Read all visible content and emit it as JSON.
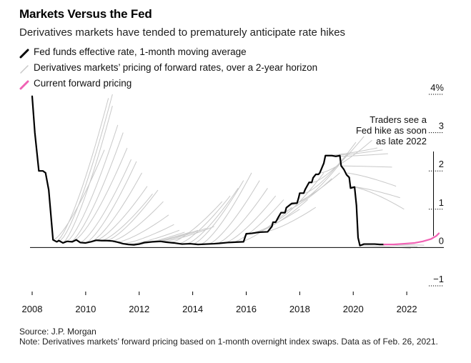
{
  "header": {
    "title": "Markets Versus the Fed",
    "subtitle": "Derivatives markets have tended to prematurely anticipate rate hikes"
  },
  "legend": [
    {
      "label": "Fed funds effective rate, 1-month moving average",
      "color": "#000000"
    },
    {
      "label": "Derivatives markets’ pricing of forward rates, over a 2-year horizon",
      "color": "#c8c8c8"
    },
    {
      "label": "Current forward pricing",
      "color": "#f062b4"
    }
  ],
  "annotation": {
    "lines": [
      "Traders see a",
      "Fed hike as soon",
      "as late 2022"
    ]
  },
  "footer": {
    "source": "Source: J.P. Morgan",
    "note": "Note: Derivatives markets’ forward pricing based on 1-month overnight index swaps. Data as of Feb. 26, 2021."
  },
  "chart_data": {
    "type": "line",
    "title": "Markets Versus the Fed",
    "xlabel": "",
    "ylabel": "",
    "xlim": [
      2008,
      2023.6
    ],
    "ylim": [
      -1,
      4
    ],
    "x_ticks": [
      2008,
      2010,
      2012,
      2014,
      2016,
      2018,
      2020,
      2022
    ],
    "x_tick_labels": [
      "2008",
      "2010",
      "2012",
      "2014",
      "2016",
      "2018",
      "2020",
      "2022"
    ],
    "y_ticks": [
      4,
      3,
      2,
      1,
      0,
      -1
    ],
    "y_tick_labels": [
      "4%",
      "3",
      "2",
      "1",
      "0",
      "−1"
    ],
    "series": [
      {
        "name": "Fed funds effective rate, 1-month moving average",
        "color": "#000000",
        "x": [
          2008.0,
          2008.1,
          2008.25,
          2008.4,
          2008.5,
          2008.62,
          2008.78,
          2008.92,
          2009.0,
          2009.15,
          2009.3,
          2009.5,
          2009.65,
          2009.8,
          2010.0,
          2010.2,
          2010.4,
          2010.6,
          2010.8,
          2011.0,
          2011.2,
          2011.4,
          2011.6,
          2011.8,
          2012.0,
          2012.2,
          2012.5,
          2012.8,
          2013.0,
          2013.3,
          2013.6,
          2013.9,
          2014.2,
          2014.5,
          2014.8,
          2015.0,
          2015.3,
          2015.6,
          2015.9,
          2016.0,
          2016.2,
          2016.5,
          2016.8,
          2016.96,
          2017.0,
          2017.1,
          2017.2,
          2017.3,
          2017.45,
          2017.5,
          2017.7,
          2017.9,
          2017.96,
          2018.0,
          2018.15,
          2018.2,
          2018.35,
          2018.45,
          2018.5,
          2018.6,
          2018.7,
          2018.75,
          2018.9,
          2018.96,
          2019.0,
          2019.2,
          2019.35,
          2019.5,
          2019.55,
          2019.65,
          2019.75,
          2019.85,
          2019.9,
          2020.05,
          2020.12,
          2020.18,
          2020.25,
          2020.4,
          2020.6,
          2020.8,
          2021.0,
          2021.15
        ],
        "values": [
          3.95,
          3.0,
          2.0,
          2.0,
          1.95,
          1.5,
          0.2,
          0.15,
          0.18,
          0.12,
          0.16,
          0.15,
          0.2,
          0.13,
          0.12,
          0.15,
          0.19,
          0.18,
          0.18,
          0.17,
          0.14,
          0.1,
          0.08,
          0.07,
          0.09,
          0.13,
          0.15,
          0.16,
          0.14,
          0.12,
          0.09,
          0.1,
          0.08,
          0.09,
          0.1,
          0.11,
          0.13,
          0.14,
          0.15,
          0.36,
          0.37,
          0.4,
          0.41,
          0.55,
          0.66,
          0.66,
          0.79,
          0.91,
          0.91,
          1.04,
          1.15,
          1.16,
          1.3,
          1.42,
          1.42,
          1.51,
          1.7,
          1.7,
          1.82,
          1.91,
          1.91,
          1.95,
          2.2,
          2.4,
          2.4,
          2.4,
          2.38,
          2.4,
          2.13,
          2.04,
          1.9,
          1.83,
          1.55,
          1.58,
          1.1,
          0.26,
          0.05,
          0.09,
          0.09,
          0.09,
          0.08,
          0.08
        ]
      },
      {
        "name": "Current forward pricing",
        "color": "#f062b4",
        "x": [
          2021.15,
          2021.5,
          2021.9,
          2022.3,
          2022.6,
          2022.9,
          2023.1,
          2023.2
        ],
        "values": [
          0.08,
          0.08,
          0.1,
          0.12,
          0.16,
          0.22,
          0.3,
          0.37
        ]
      }
    ],
    "forward_pricing_curves": [
      {
        "start": [
          2008.8,
          0.2
        ],
        "end": [
          2010.7,
          2.55
        ],
        "mid_bump": 0.0
      },
      {
        "start": [
          2008.95,
          0.18
        ],
        "end": [
          2010.85,
          3.9
        ],
        "mid_bump": 0.0
      },
      {
        "start": [
          2009.05,
          0.18
        ],
        "end": [
          2011.0,
          4.0
        ],
        "mid_bump": 0.0
      },
      {
        "start": [
          2009.15,
          0.12
        ],
        "end": [
          2011.0,
          3.7
        ],
        "mid_bump": 0.0
      },
      {
        "start": [
          2009.3,
          0.16
        ],
        "end": [
          2011.2,
          3.2
        ],
        "mid_bump": 0.0
      },
      {
        "start": [
          2009.45,
          0.15
        ],
        "end": [
          2011.4,
          3.0
        ],
        "mid_bump": 0.0
      },
      {
        "start": [
          2009.6,
          0.2
        ],
        "end": [
          2011.55,
          2.6
        ],
        "mid_bump": 0.0
      },
      {
        "start": [
          2009.8,
          0.13
        ],
        "end": [
          2011.7,
          2.3
        ],
        "mid_bump": 0.0
      },
      {
        "start": [
          2010.0,
          0.12
        ],
        "end": [
          2011.9,
          2.25
        ],
        "mid_bump": 0.0
      },
      {
        "start": [
          2010.2,
          0.15
        ],
        "end": [
          2012.1,
          1.95
        ],
        "mid_bump": 0.0
      },
      {
        "start": [
          2010.4,
          0.19
        ],
        "end": [
          2012.3,
          1.6
        ],
        "mid_bump": 0.0
      },
      {
        "start": [
          2010.6,
          0.18
        ],
        "end": [
          2012.5,
          1.4
        ],
        "mid_bump": 0.0
      },
      {
        "start": [
          2010.8,
          0.18
        ],
        "end": [
          2012.7,
          1.5
        ],
        "mid_bump": 0.0
      },
      {
        "start": [
          2011.0,
          0.17
        ],
        "end": [
          2012.9,
          1.2
        ],
        "mid_bump": 0.0
      },
      {
        "start": [
          2011.2,
          0.14
        ],
        "end": [
          2013.1,
          0.85
        ],
        "mid_bump": 0.0
      },
      {
        "start": [
          2011.4,
          0.1
        ],
        "end": [
          2013.3,
          0.6
        ],
        "mid_bump": 0.0
      },
      {
        "start": [
          2011.6,
          0.08
        ],
        "end": [
          2013.5,
          0.45
        ],
        "mid_bump": 0.0
      },
      {
        "start": [
          2011.8,
          0.07
        ],
        "end": [
          2013.7,
          0.4
        ],
        "mid_bump": 0.0
      },
      {
        "start": [
          2012.0,
          0.09
        ],
        "end": [
          2013.9,
          0.4
        ],
        "mid_bump": 0.0
      },
      {
        "start": [
          2012.3,
          0.13
        ],
        "end": [
          2014.2,
          0.45
        ],
        "mid_bump": 0.0
      },
      {
        "start": [
          2012.6,
          0.15
        ],
        "end": [
          2014.5,
          0.5
        ],
        "mid_bump": 0.0
      },
      {
        "start": [
          2012.9,
          0.16
        ],
        "end": [
          2014.8,
          0.55
        ],
        "mid_bump": 0.0
      },
      {
        "start": [
          2013.2,
          0.13
        ],
        "end": [
          2015.1,
          1.2
        ],
        "mid_bump": 0.0
      },
      {
        "start": [
          2013.5,
          0.1
        ],
        "end": [
          2015.4,
          1.35
        ],
        "mid_bump": 0.0
      },
      {
        "start": [
          2013.8,
          0.1
        ],
        "end": [
          2015.7,
          1.55
        ],
        "mid_bump": 0.0
      },
      {
        "start": [
          2014.0,
          0.08
        ],
        "end": [
          2015.9,
          1.75
        ],
        "mid_bump": 0.0
      },
      {
        "start": [
          2014.3,
          0.08
        ],
        "end": [
          2016.2,
          1.95
        ],
        "mid_bump": 0.0
      },
      {
        "start": [
          2014.6,
          0.09
        ],
        "end": [
          2016.5,
          1.75
        ],
        "mid_bump": 0.0
      },
      {
        "start": [
          2014.9,
          0.1
        ],
        "end": [
          2016.8,
          1.55
        ],
        "mid_bump": 0.0
      },
      {
        "start": [
          2015.2,
          0.12
        ],
        "end": [
          2017.1,
          1.35
        ],
        "mid_bump": 0.0
      },
      {
        "start": [
          2015.5,
          0.13
        ],
        "end": [
          2017.4,
          1.25
        ],
        "mid_bump": 0.0
      },
      {
        "start": [
          2015.8,
          0.15
        ],
        "end": [
          2017.7,
          1.05
        ],
        "mid_bump": 0.0
      },
      {
        "start": [
          2016.1,
          0.36
        ],
        "end": [
          2018.0,
          1.0
        ],
        "mid_bump": 0.0
      },
      {
        "start": [
          2016.4,
          0.4
        ],
        "end": [
          2018.3,
          1.25
        ],
        "mid_bump": 0.0
      },
      {
        "start": [
          2016.7,
          0.41
        ],
        "end": [
          2018.6,
          1.05
        ],
        "mid_bump": 0.0
      },
      {
        "start": [
          2017.0,
          0.66
        ],
        "end": [
          2018.9,
          1.95
        ],
        "mid_bump": 0.0
      },
      {
        "start": [
          2017.3,
          0.91
        ],
        "end": [
          2019.2,
          1.8
        ],
        "mid_bump": 0.0
      },
      {
        "start": [
          2017.6,
          1.1
        ],
        "end": [
          2019.5,
          1.95
        ],
        "mid_bump": 0.0
      },
      {
        "start": [
          2017.9,
          1.16
        ],
        "end": [
          2019.8,
          2.45
        ],
        "mid_bump": 0.0
      },
      {
        "start": [
          2018.2,
          1.42
        ],
        "end": [
          2020.1,
          2.75
        ],
        "mid_bump": 0.0
      },
      {
        "start": [
          2018.5,
          1.7
        ],
        "end": [
          2020.4,
          2.9
        ],
        "mid_bump": 0.0
      },
      {
        "start": [
          2018.8,
          1.95
        ],
        "end": [
          2020.7,
          2.8
        ],
        "mid_bump": 0.0
      },
      {
        "start": [
          2019.0,
          2.4
        ],
        "end": [
          2020.9,
          2.6
        ],
        "mid_bump": 0.0
      },
      {
        "start": [
          2019.2,
          2.4
        ],
        "end": [
          2021.1,
          2.55
        ],
        "mid_bump": 0.0
      },
      {
        "start": [
          2019.4,
          2.38
        ],
        "end": [
          2021.3,
          2.45
        ],
        "mid_bump": 0.0
      },
      {
        "start": [
          2019.55,
          2.13
        ],
        "end": [
          2021.45,
          2.1
        ],
        "mid_bump": 0.0
      },
      {
        "start": [
          2019.7,
          1.95
        ],
        "end": [
          2021.6,
          1.6
        ],
        "mid_bump": 0.0
      },
      {
        "start": [
          2019.85,
          1.6
        ],
        "end": [
          2021.75,
          1.3
        ],
        "mid_bump": 0.0
      },
      {
        "start": [
          2020.0,
          1.58
        ],
        "end": [
          2021.9,
          1.0
        ],
        "mid_bump": 0.0
      },
      {
        "start": [
          2020.25,
          0.05
        ],
        "end": [
          2022.15,
          -0.02
        ],
        "mid_bump": 0.0
      },
      {
        "start": [
          2020.5,
          0.09
        ],
        "end": [
          2022.4,
          0.02
        ],
        "mid_bump": 0.0
      },
      {
        "start": [
          2020.75,
          0.09
        ],
        "end": [
          2022.65,
          0.06
        ],
        "mid_bump": 0.0
      }
    ],
    "annotation_x": 2023.0
  },
  "colors": {
    "fed_line": "#000000",
    "forward_lines": "#c8c8c8",
    "current_pricing": "#f062b4",
    "zero_line": "#000000",
    "grid_dash": "#000000"
  }
}
